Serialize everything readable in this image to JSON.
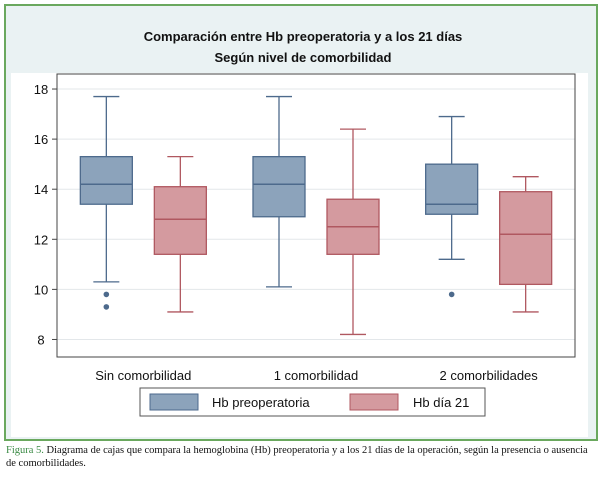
{
  "chart_data": {
    "type": "box",
    "title": "Comparación entre Hb preoperatoria y a los 21 días",
    "subtitle": "Según nivel de comorbilidad",
    "categories": [
      "Sin comorbilidad",
      "1 comorbilidad",
      "2 comorbilidades"
    ],
    "ylim": [
      7.3,
      18.6
    ],
    "yticks": [
      8,
      10,
      12,
      14,
      16,
      18
    ],
    "grid": true,
    "legend_position": "bottom",
    "series": [
      {
        "name": "Hb preoperatoria",
        "color": "#8ca3bb",
        "edge": "#4d6a8c",
        "boxes": [
          {
            "whisker_low": 10.3,
            "q1": 13.4,
            "median": 14.2,
            "q3": 15.3,
            "whisker_high": 17.7,
            "outliers": [
              9.8,
              9.3
            ]
          },
          {
            "whisker_low": 10.1,
            "q1": 12.9,
            "median": 14.2,
            "q3": 15.3,
            "whisker_high": 17.7,
            "outliers": []
          },
          {
            "whisker_low": 11.2,
            "q1": 13.0,
            "median": 13.4,
            "q3": 15.0,
            "whisker_high": 16.9,
            "outliers": [
              9.8
            ]
          }
        ]
      },
      {
        "name": "Hb día 21",
        "color": "#d49a9f",
        "edge": "#b05860",
        "boxes": [
          {
            "whisker_low": 9.1,
            "q1": 11.4,
            "median": 12.8,
            "q3": 14.1,
            "whisker_high": 15.3,
            "outliers": []
          },
          {
            "whisker_low": 8.2,
            "q1": 11.4,
            "median": 12.5,
            "q3": 13.6,
            "whisker_high": 16.4,
            "outliers": []
          },
          {
            "whisker_low": 9.1,
            "q1": 10.2,
            "median": 12.2,
            "q3": 13.9,
            "whisker_high": 14.5,
            "outliers": []
          }
        ]
      }
    ]
  },
  "caption": {
    "label": "Figura 5.",
    "text": " Diagrama de cajas que compara la hemoglobina (Hb) preoperatoria y a los 21 días de la operación, según la presencia o ausencia de comorbilidades."
  }
}
